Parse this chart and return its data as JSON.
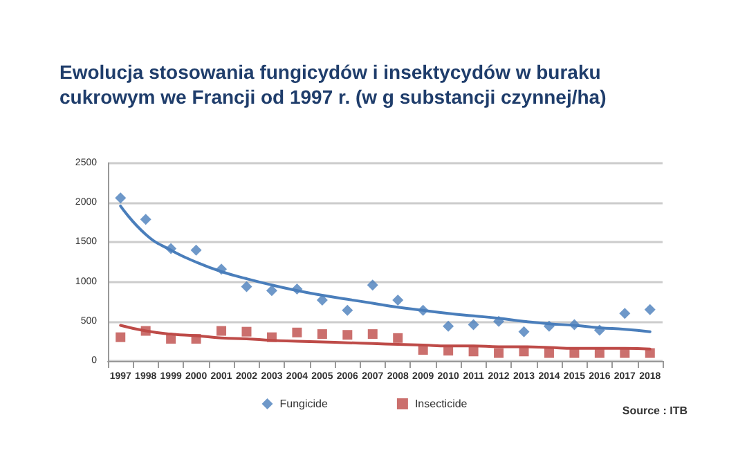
{
  "chart_data": {
    "type": "scatter",
    "title": "Ewolucja stosowania fungicydów i insektycydów w buraku\ncukrowym we Francji od 1997 r. (w g substancji czynnej/ha)",
    "categories": [
      "1997",
      "1998",
      "1999",
      "2000",
      "2001",
      "2002",
      "2003",
      "2004",
      "2005",
      "2006",
      "2007",
      "2008",
      "2009",
      "2010",
      "2011",
      "2012",
      "2013",
      "2014",
      "2015",
      "2016",
      "2017",
      "2018"
    ],
    "series": [
      {
        "name": "Fungicide",
        "marker": "diamond",
        "color": "#4a7ebb",
        "values": [
          2060,
          1790,
          1420,
          1400,
          1160,
          940,
          890,
          910,
          770,
          640,
          960,
          770,
          640,
          440,
          460,
          500,
          370,
          440,
          460,
          390,
          600,
          650
        ]
      },
      {
        "name": "Insecticide",
        "marker": "square",
        "color": "#be4b48",
        "values": [
          300,
          380,
          280,
          280,
          380,
          370,
          300,
          360,
          340,
          330,
          340,
          290,
          140,
          130,
          120,
          100,
          120,
          100,
          100,
          100,
          100,
          100
        ]
      },
      {
        "type": "line",
        "color": "#4a7ebb",
        "values": [
          1960,
          1600,
          1400,
          1250,
          1130,
          1040,
          960,
          890,
          830,
          780,
          730,
          680,
          640,
          600,
          570,
          540,
          500,
          470,
          450,
          420,
          400,
          370
        ]
      },
      {
        "type": "line",
        "color": "#be4b48",
        "values": [
          450,
          380,
          340,
          320,
          290,
          280,
          260,
          250,
          240,
          230,
          220,
          210,
          200,
          190,
          190,
          180,
          180,
          170,
          160,
          160,
          160,
          150
        ]
      }
    ],
    "ylim": [
      0,
      2500
    ],
    "yticks": [
      0,
      500,
      1000,
      1500,
      2000,
      2500
    ],
    "grid": "y",
    "legend": "bottom",
    "annotations": [
      "Source : ITB"
    ]
  }
}
